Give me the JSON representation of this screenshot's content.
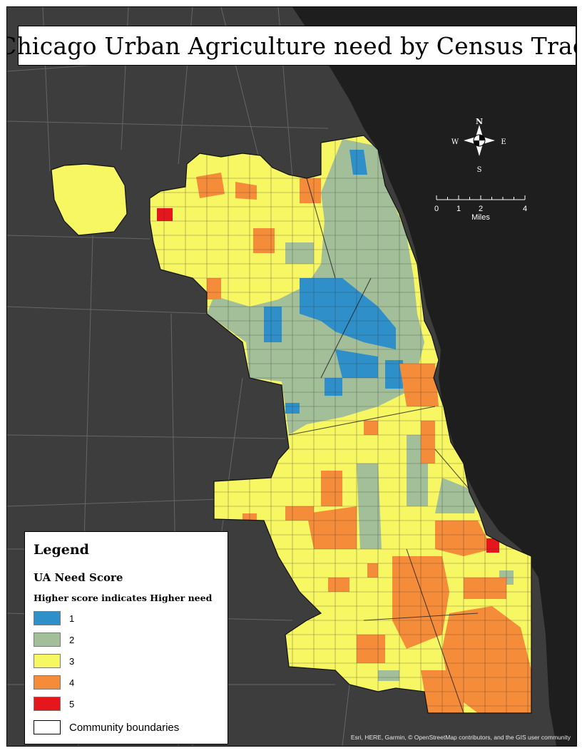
{
  "title": "Chicago Urban Agriculture need by Census Tract",
  "compass": {
    "n": "N",
    "s": "S",
    "e": "E",
    "w": "W",
    "icon": "compass-rose-icon"
  },
  "scale": {
    "ticks": [
      "0",
      "1",
      "2",
      "4"
    ],
    "unit": "Miles"
  },
  "legend": {
    "title": "Legend",
    "subtitle": "UA Need Score",
    "description": "Higher score indicates Higher need",
    "classes": [
      {
        "label": "1",
        "color": "#2f8fc9"
      },
      {
        "label": "2",
        "color": "#a3bf9a"
      },
      {
        "label": "3",
        "color": "#f7f663"
      },
      {
        "label": "4",
        "color": "#f58c3a"
      },
      {
        "label": "5",
        "color": "#e6161d"
      }
    ],
    "boundary": {
      "label": "Community boundaries",
      "color": "#ffffff"
    }
  },
  "colors": {
    "water": "#1e1e1e",
    "land": "#3d3d3d",
    "roads": "#6e6e6e"
  },
  "attribution": "Esri, HERE, Garmin, © OpenStreetMap contributors, and the GIS user community"
}
